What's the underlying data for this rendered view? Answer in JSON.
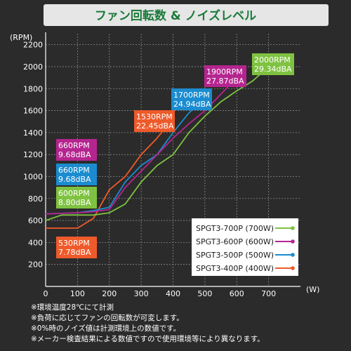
{
  "title": "ファン回転数 & ノイズレベル",
  "notes": [
    "※環境温度28℃にて計測",
    "※負荷に応じてファンの回転数が可変します。",
    "※0%時のノイズ値は計測環境上の数値です。",
    "※メーカー検査結果による数値ですので使用環境等により異なります。"
  ],
  "colors": {
    "title_bg": "#e6e6e6",
    "title_text": "#1a7a3a",
    "background": "#2b2b2b",
    "grid": "#8a8a8a",
    "text": "#ffffff",
    "legend_bg": "#ffffff",
    "legend_text": "#1a1a1a"
  },
  "chart_data": {
    "type": "line",
    "title": "ファン回転数 & ノイズレベル",
    "xlabel": "(W)",
    "ylabel": "(RPM)",
    "xlim": [
      0,
      800
    ],
    "ylim": [
      0,
      2300
    ],
    "x_ticks": [
      0,
      100,
      200,
      300,
      400,
      500,
      600,
      700
    ],
    "y_ticks": [
      200,
      400,
      600,
      800,
      1000,
      1200,
      1400,
      1600,
      1800,
      2000,
      2200
    ],
    "grid": true,
    "legend_position": "bottom-right",
    "series": [
      {
        "name": "SPGT3-700P (700W)",
        "color": "#7fc241",
        "points": [
          [
            0,
            600
          ],
          [
            50,
            650
          ],
          [
            100,
            650
          ],
          [
            150,
            650
          ],
          [
            200,
            670
          ],
          [
            250,
            750
          ],
          [
            300,
            950
          ],
          [
            350,
            1100
          ],
          [
            400,
            1200
          ],
          [
            450,
            1400
          ],
          [
            500,
            1550
          ],
          [
            550,
            1680
          ],
          [
            600,
            1780
          ],
          [
            650,
            1870
          ],
          [
            700,
            2000
          ]
        ],
        "label_lines": [
          "600RPM",
          "8.80dBA"
        ],
        "end_label_lines": [
          "2000RPM",
          "29.34dBA"
        ]
      },
      {
        "name": "SPGT3-600P (600W)",
        "color": "#b5258f",
        "points": [
          [
            0,
            660
          ],
          [
            50,
            665
          ],
          [
            100,
            670
          ],
          [
            150,
            680
          ],
          [
            200,
            700
          ],
          [
            250,
            900
          ],
          [
            300,
            1050
          ],
          [
            350,
            1200
          ],
          [
            400,
            1350
          ],
          [
            450,
            1480
          ],
          [
            500,
            1600
          ],
          [
            550,
            1750
          ],
          [
            600,
            1900
          ]
        ],
        "label_lines": [
          "660RPM",
          "9.68dBA"
        ],
        "end_label_lines": [
          "1900RPM",
          "27.87dBA"
        ]
      },
      {
        "name": "SPGT3-500P (500W)",
        "color": "#1b8ccf",
        "points": [
          [
            0,
            660
          ],
          [
            50,
            665
          ],
          [
            100,
            670
          ],
          [
            150,
            690
          ],
          [
            200,
            720
          ],
          [
            250,
            950
          ],
          [
            300,
            1100
          ],
          [
            350,
            1200
          ],
          [
            400,
            1400
          ],
          [
            450,
            1580
          ],
          [
            500,
            1700
          ]
        ],
        "label_lines": [
          "660RPM",
          "9.68dBA"
        ],
        "end_label_lines": [
          "1700RPM",
          "24.94dBA"
        ]
      },
      {
        "name": "SPGT3-400P (400W)",
        "color": "#ef5a2a",
        "points": [
          [
            0,
            530
          ],
          [
            50,
            530
          ],
          [
            100,
            530
          ],
          [
            150,
            620
          ],
          [
            200,
            880
          ],
          [
            250,
            1000
          ],
          [
            300,
            1200
          ],
          [
            350,
            1350
          ],
          [
            400,
            1530
          ]
        ],
        "label_lines": [
          "530RPM",
          "7.78dBA"
        ],
        "end_label_lines": [
          "1530RPM",
          "22.45dBA"
        ]
      }
    ]
  }
}
